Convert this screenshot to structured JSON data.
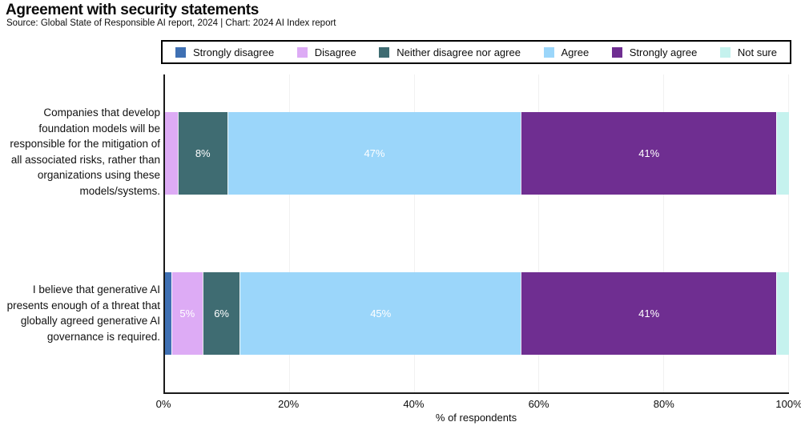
{
  "header": {
    "title": "Agreement with security statements",
    "subtitle": "Source: Global State of Responsible AI report, 2024 | Chart: 2024 AI Index report"
  },
  "chart_data": {
    "type": "bar",
    "stacked": true,
    "orientation": "horizontal",
    "title": "Agreement with security statements",
    "xlabel": "% of respondents",
    "ylabel": "",
    "xlim": [
      0,
      100
    ],
    "xticks": [
      "0%",
      "20%",
      "40%",
      "60%",
      "80%",
      "100%"
    ],
    "gridlines_at": [
      20,
      40,
      60,
      80,
      100
    ],
    "grid": true,
    "legend_position": "top",
    "label_min_value": 5,
    "categories": [
      "Companies that develop foundation models will be responsible for the mitigation of all associated risks, rather than organizations using these models/systems.",
      "I believe that generative AI presents enough of a threat that globally agreed generative AI governance is required."
    ],
    "series": [
      {
        "name": "Strongly disagree",
        "color": "#3f70b3",
        "values": [
          0,
          1
        ]
      },
      {
        "name": "Disagree",
        "color": "#ddabf5",
        "values": [
          2,
          5
        ]
      },
      {
        "name": "Neither disagree nor agree",
        "color": "#3f6c72",
        "values": [
          8,
          6
        ]
      },
      {
        "name": "Agree",
        "color": "#9bd6fa",
        "values": [
          47,
          45
        ]
      },
      {
        "name": "Strongly agree",
        "color": "#6f2e91",
        "values": [
          41,
          41
        ]
      },
      {
        "name": "Not sure",
        "color": "#c5f2ee",
        "values": [
          2,
          2
        ]
      }
    ]
  }
}
